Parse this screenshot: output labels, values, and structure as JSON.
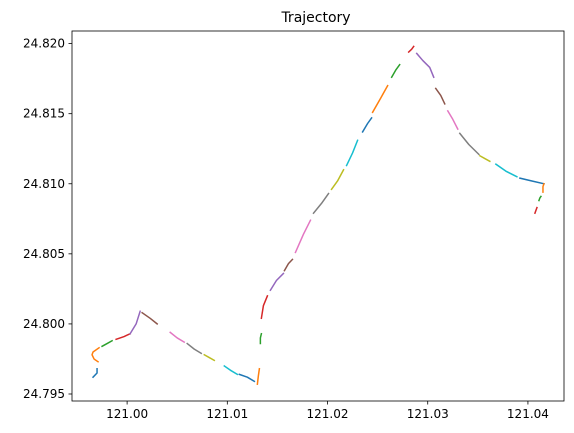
{
  "chart_data": {
    "type": "line",
    "title": "Trajectory",
    "xlabel": "",
    "ylabel": "",
    "xlim": [
      120.9945,
      121.0436
    ],
    "ylim": [
      24.7945,
      24.8209
    ],
    "x_ticks": [
      "121.00",
      "121.01",
      "121.02",
      "121.03",
      "121.04"
    ],
    "x_tick_values": [
      121.0,
      121.01,
      121.02,
      121.03,
      121.04
    ],
    "y_ticks": [
      "24.795",
      "24.800",
      "24.805",
      "24.810",
      "24.815",
      "24.820"
    ],
    "y_tick_values": [
      24.795,
      24.8,
      24.805,
      24.81,
      24.815,
      24.82
    ],
    "grid": false,
    "legend": "none",
    "colors": [
      "#1f77b4",
      "#ff7f0e",
      "#2ca02c",
      "#d62728",
      "#9467bd",
      "#8c564b",
      "#e377c2",
      "#7f7f7f",
      "#bcbd22",
      "#17becf"
    ],
    "segments": [
      {
        "x": [
          120.9966,
          120.997,
          120.997
        ],
        "y": [
          24.7962,
          24.7965,
          24.7968
        ]
      },
      {
        "x": [
          120.9972,
          120.9966,
          120.9965,
          120.9967,
          120.9971
        ],
        "y": [
          24.7983,
          24.798,
          24.7978,
          24.7975,
          24.7973
        ]
      },
      {
        "x": [
          120.9975,
          120.998,
          120.9985
        ],
        "y": [
          24.7984,
          24.7986,
          24.7988
        ]
      },
      {
        "x": [
          120.9989,
          120.9997,
          121.0003
        ],
        "y": [
          24.7989,
          24.7991,
          24.7993
        ]
      },
      {
        "x": [
          121.0003,
          121.0009,
          121.0013
        ],
        "y": [
          24.7993,
          24.8,
          24.8009
        ]
      },
      {
        "x": [
          121.0015,
          121.0023,
          121.003
        ],
        "y": [
          24.8008,
          24.8004,
          24.8
        ]
      },
      {
        "x": [
          121.0043,
          121.005,
          121.0057
        ],
        "y": [
          24.7994,
          24.799,
          24.7987
        ]
      },
      {
        "x": [
          121.006,
          121.0067,
          121.0074
        ],
        "y": [
          24.7986,
          24.7982,
          24.7979
        ]
      },
      {
        "x": [
          121.0077,
          121.0082,
          121.0087
        ],
        "y": [
          24.7978,
          24.7976,
          24.7974
        ]
      },
      {
        "x": [
          121.0097,
          121.0103,
          121.011
        ],
        "y": [
          24.797,
          24.7967,
          24.7964
        ]
      },
      {
        "x": [
          121.0112,
          121.012,
          121.0127
        ],
        "y": [
          24.7964,
          24.7962,
          24.7959
        ]
      },
      {
        "x": [
          121.013,
          121.0131,
          121.0132
        ],
        "y": [
          24.7957,
          24.7963,
          24.7968
        ]
      },
      {
        "x": [
          121.0133,
          121.0133,
          121.0134
        ],
        "y": [
          24.7986,
          24.799,
          24.7993
        ]
      },
      {
        "x": [
          121.0134,
          121.0136,
          121.014
        ],
        "y": [
          24.8004,
          24.8013,
          24.802
        ]
      },
      {
        "x": [
          121.0143,
          121.0149,
          121.0156
        ],
        "y": [
          24.8024,
          24.8031,
          24.8036
        ]
      },
      {
        "x": [
          121.0157,
          121.0161,
          121.0165
        ],
        "y": [
          24.8038,
          24.8043,
          24.8046
        ]
      },
      {
        "x": [
          121.0168,
          121.0176,
          121.0183
        ],
        "y": [
          24.8051,
          24.8064,
          24.8074
        ]
      },
      {
        "x": [
          121.0186,
          121.0194,
          121.0201
        ],
        "y": [
          24.8079,
          24.8086,
          24.8093
        ]
      },
      {
        "x": [
          121.0204,
          121.021,
          121.0216
        ],
        "y": [
          24.8096,
          24.8102,
          24.811
        ]
      },
      {
        "x": [
          121.0219,
          121.0225,
          121.023
        ],
        "y": [
          24.8113,
          24.8122,
          24.8131
        ]
      },
      {
        "x": [
          121.0235,
          121.024,
          121.0244
        ],
        "y": [
          24.8137,
          24.8143,
          24.8147
        ]
      },
      {
        "x": [
          121.0245,
          121.0253,
          121.026
        ],
        "y": [
          24.8151,
          24.8161,
          24.817
        ]
      },
      {
        "x": [
          121.0264,
          121.0268,
          121.0272
        ],
        "y": [
          24.8176,
          24.8181,
          24.8185
        ]
      },
      {
        "x": [
          121.0281,
          121.0284,
          121.0286
        ],
        "y": [
          24.8194,
          24.8196,
          24.8198
        ]
      },
      {
        "x": [
          121.0289,
          121.0295,
          121.0302,
          121.0306
        ],
        "y": [
          24.8193,
          24.8188,
          24.8183,
          24.8176
        ]
      },
      {
        "x": [
          121.0308,
          121.0313,
          121.0317
        ],
        "y": [
          24.8168,
          24.8163,
          24.8157
        ]
      },
      {
        "x": [
          121.032,
          121.0325,
          121.033
        ],
        "y": [
          24.8152,
          24.8146,
          24.8139
        ]
      },
      {
        "x": [
          121.0332,
          121.0341,
          121.0351
        ],
        "y": [
          24.8136,
          24.8128,
          24.8121
        ]
      },
      {
        "x": [
          121.0352,
          121.0357,
          121.0362
        ],
        "y": [
          24.812,
          24.8118,
          24.8116
        ]
      },
      {
        "x": [
          121.0368,
          121.0378,
          121.0389
        ],
        "y": [
          24.8114,
          24.8109,
          24.8105
        ]
      },
      {
        "x": [
          121.0392,
          121.0404,
          121.0416
        ],
        "y": [
          24.8104,
          24.8102,
          24.81
        ]
      },
      {
        "x": [
          121.0416,
          121.0415,
          121.0415
        ],
        "y": [
          24.81,
          24.8098,
          24.8094
        ]
      },
      {
        "x": [
          121.0413,
          121.0412,
          121.0411
        ],
        "y": [
          24.8091,
          24.809,
          24.8088
        ]
      },
      {
        "x": [
          121.0409,
          121.0408,
          121.0407
        ],
        "y": [
          24.8083,
          24.8081,
          24.8079
        ]
      }
    ]
  }
}
